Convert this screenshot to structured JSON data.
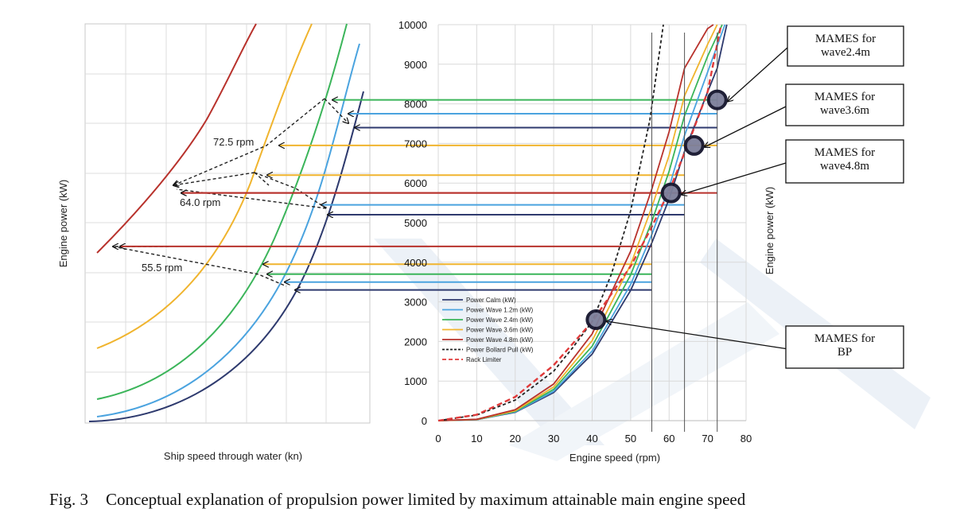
{
  "caption": {
    "number": "Fig. 3",
    "text": "Conceptual explanation of propulsion power limited by maximum attainable main engine speed"
  },
  "colors": {
    "calm": "#2e3a6e",
    "wave12": "#4aa3df",
    "wave24": "#3bb55a",
    "wave36": "#f0b42e",
    "wave48": "#b8322c",
    "bollard": "#222222",
    "rack": "#e03a3a",
    "watermark": "#dde6f1"
  },
  "left_chart": {
    "xlabel": "Ship speed through water (kn)",
    "ylabel": "Engine power (kW)",
    "rpm_labels": [
      "72.5 rpm",
      "64.0 rpm",
      "55.5 rpm"
    ]
  },
  "chart_data": {
    "type": "line",
    "xlabel": "Engine speed (rpm)",
    "ylabel": "Engine power (kW)",
    "xlim": [
      0,
      80
    ],
    "ylim": [
      0,
      10000
    ],
    "x_ticks": [
      "0",
      "10",
      "20",
      "30",
      "40",
      "50",
      "60",
      "70",
      "80"
    ],
    "y_ticks": [
      "0",
      "1000",
      "2000",
      "3000",
      "4000",
      "5000",
      "6000",
      "7000",
      "8000",
      "9000",
      "10000"
    ],
    "grid": true,
    "legend_position": "upper-left",
    "series": [
      {
        "name": "Power Calm (kW)",
        "key": "calm",
        "style": "solid",
        "x": [
          0,
          10,
          20,
          30,
          40,
          50,
          55.5,
          60,
          64,
          70,
          72.5,
          75
        ],
        "y": [
          0,
          26,
          210,
          710,
          1680,
          3290,
          4490,
          5600,
          6800,
          8300,
          8900,
          10000
        ]
      },
      {
        "name": "Power Wave 1.2m (kW)",
        "key": "wave12",
        "style": "solid",
        "x": [
          0,
          10,
          20,
          30,
          40,
          50,
          55.5,
          60,
          64,
          70,
          74.5
        ],
        "y": [
          0,
          27,
          220,
          740,
          1760,
          3440,
          4700,
          5900,
          7200,
          8800,
          10000
        ]
      },
      {
        "name": "Power Wave 2.4m (kW)",
        "key": "wave24",
        "style": "solid",
        "x": [
          0,
          10,
          20,
          30,
          40,
          50,
          55.5,
          60,
          64,
          70,
          73.8
        ],
        "y": [
          0,
          29,
          235,
          790,
          1880,
          3680,
          5030,
          6300,
          7700,
          9200,
          10000
        ]
      },
      {
        "name": "Power Wave 3.6m (kW)",
        "key": "wave36",
        "style": "solid",
        "x": [
          0,
          10,
          20,
          30,
          40,
          50,
          55.5,
          60,
          64,
          70,
          72.5
        ],
        "y": [
          0,
          31,
          252,
          850,
          2020,
          3940,
          5390,
          6700,
          8200,
          9500,
          10000
        ]
      },
      {
        "name": "Power Wave 4.8m (kW)",
        "key": "wave48",
        "style": "solid",
        "x": [
          0,
          10,
          20,
          30,
          40,
          50,
          55.5,
          60,
          64,
          70,
          71.5
        ],
        "y": [
          0,
          34,
          275,
          925,
          2190,
          4280,
          5850,
          7300,
          8900,
          9900,
          10000
        ]
      },
      {
        "name": "Power Bollard Pull (kW)",
        "key": "bollard",
        "style": "dashed",
        "x": [
          0,
          10,
          20,
          30,
          35,
          40,
          45,
          50,
          55,
          58.5
        ],
        "y": [
          0,
          140,
          520,
          1250,
          1850,
          2500,
          3700,
          5300,
          7600,
          10000
        ]
      },
      {
        "name": "Rack Limiter",
        "key": "rack",
        "style": "dashed-red",
        "x": [
          0,
          10,
          20,
          30,
          40,
          50,
          55,
          60,
          65,
          70,
          73.5
        ],
        "y": [
          0,
          150,
          600,
          1400,
          2500,
          3900,
          4800,
          5800,
          7000,
          8300,
          10000
        ]
      }
    ],
    "annotations": [
      {
        "text_lines": [
          "MAMES for",
          "wave2.4m"
        ],
        "point": [
          72.5,
          8100
        ]
      },
      {
        "text_lines": [
          "MAMES for",
          "wave3.6m"
        ],
        "point": [
          66.5,
          6950
        ]
      },
      {
        "text_lines": [
          "MAMES for",
          "wave4.8m"
        ],
        "point": [
          60.5,
          5750
        ]
      },
      {
        "text_lines": [
          "MAMES for",
          "BP"
        ],
        "point": [
          41,
          2550
        ]
      }
    ],
    "vertical_markers": [
      55.5,
      64.0,
      72.5
    ],
    "horizontal_levels": {
      "72.5 rpm": {
        "wave24": 8100,
        "wave12": 7750,
        "calm": 7400,
        "wave36": 6950,
        "wave48": 5750
      },
      "64.0 rpm": {
        "wave36": 6200,
        "wave48": 5750,
        "wave12": 5450,
        "calm": 5200
      },
      "55.5 rpm": {
        "wave48": 4400,
        "wave36": 3950,
        "wave24": 3700,
        "wave12": 3500,
        "calm": 3300
      }
    }
  }
}
